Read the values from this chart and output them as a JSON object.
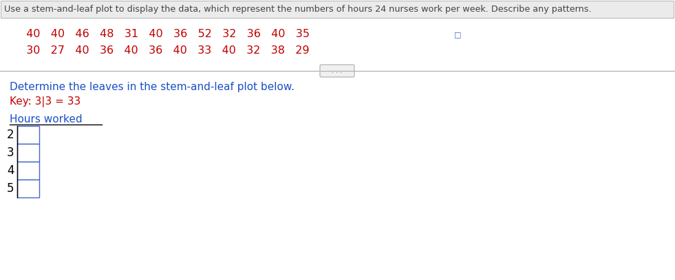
{
  "title_text": "Use a stem-and-leaf plot to display the data, which represent the numbers of hours 24 nurses work per week. Describe any patterns.",
  "data_row1": "  40   40   46   48   31   40   36   52   32   36   40   35",
  "data_row2": "  30   27   40   36   40   36   40   33   40   32   38   29",
  "instruction_text": "Determine the leaves in the stem-and-leaf plot below.",
  "key_text": "Key: 3|3 = 33",
  "plot_label": "Hours worked",
  "stems": [
    "2",
    "3",
    "4",
    "5"
  ],
  "title_color": "#444444",
  "title_bg": "#ebebeb",
  "title_border": "#bbbbbb",
  "data_color": "#c00000",
  "instruction_color": "#1a4fc4",
  "key_color": "#c00000",
  "plot_label_color": "#1a4fc4",
  "stem_color": "#000000",
  "box_border_color": "#4466cc",
  "box_fill_color": "#ffffff",
  "background_color": "#ffffff",
  "divider_color": "#aaaaaa",
  "dots_color": "#666666",
  "underline_color": "#000000",
  "icon_color": "#4466cc"
}
